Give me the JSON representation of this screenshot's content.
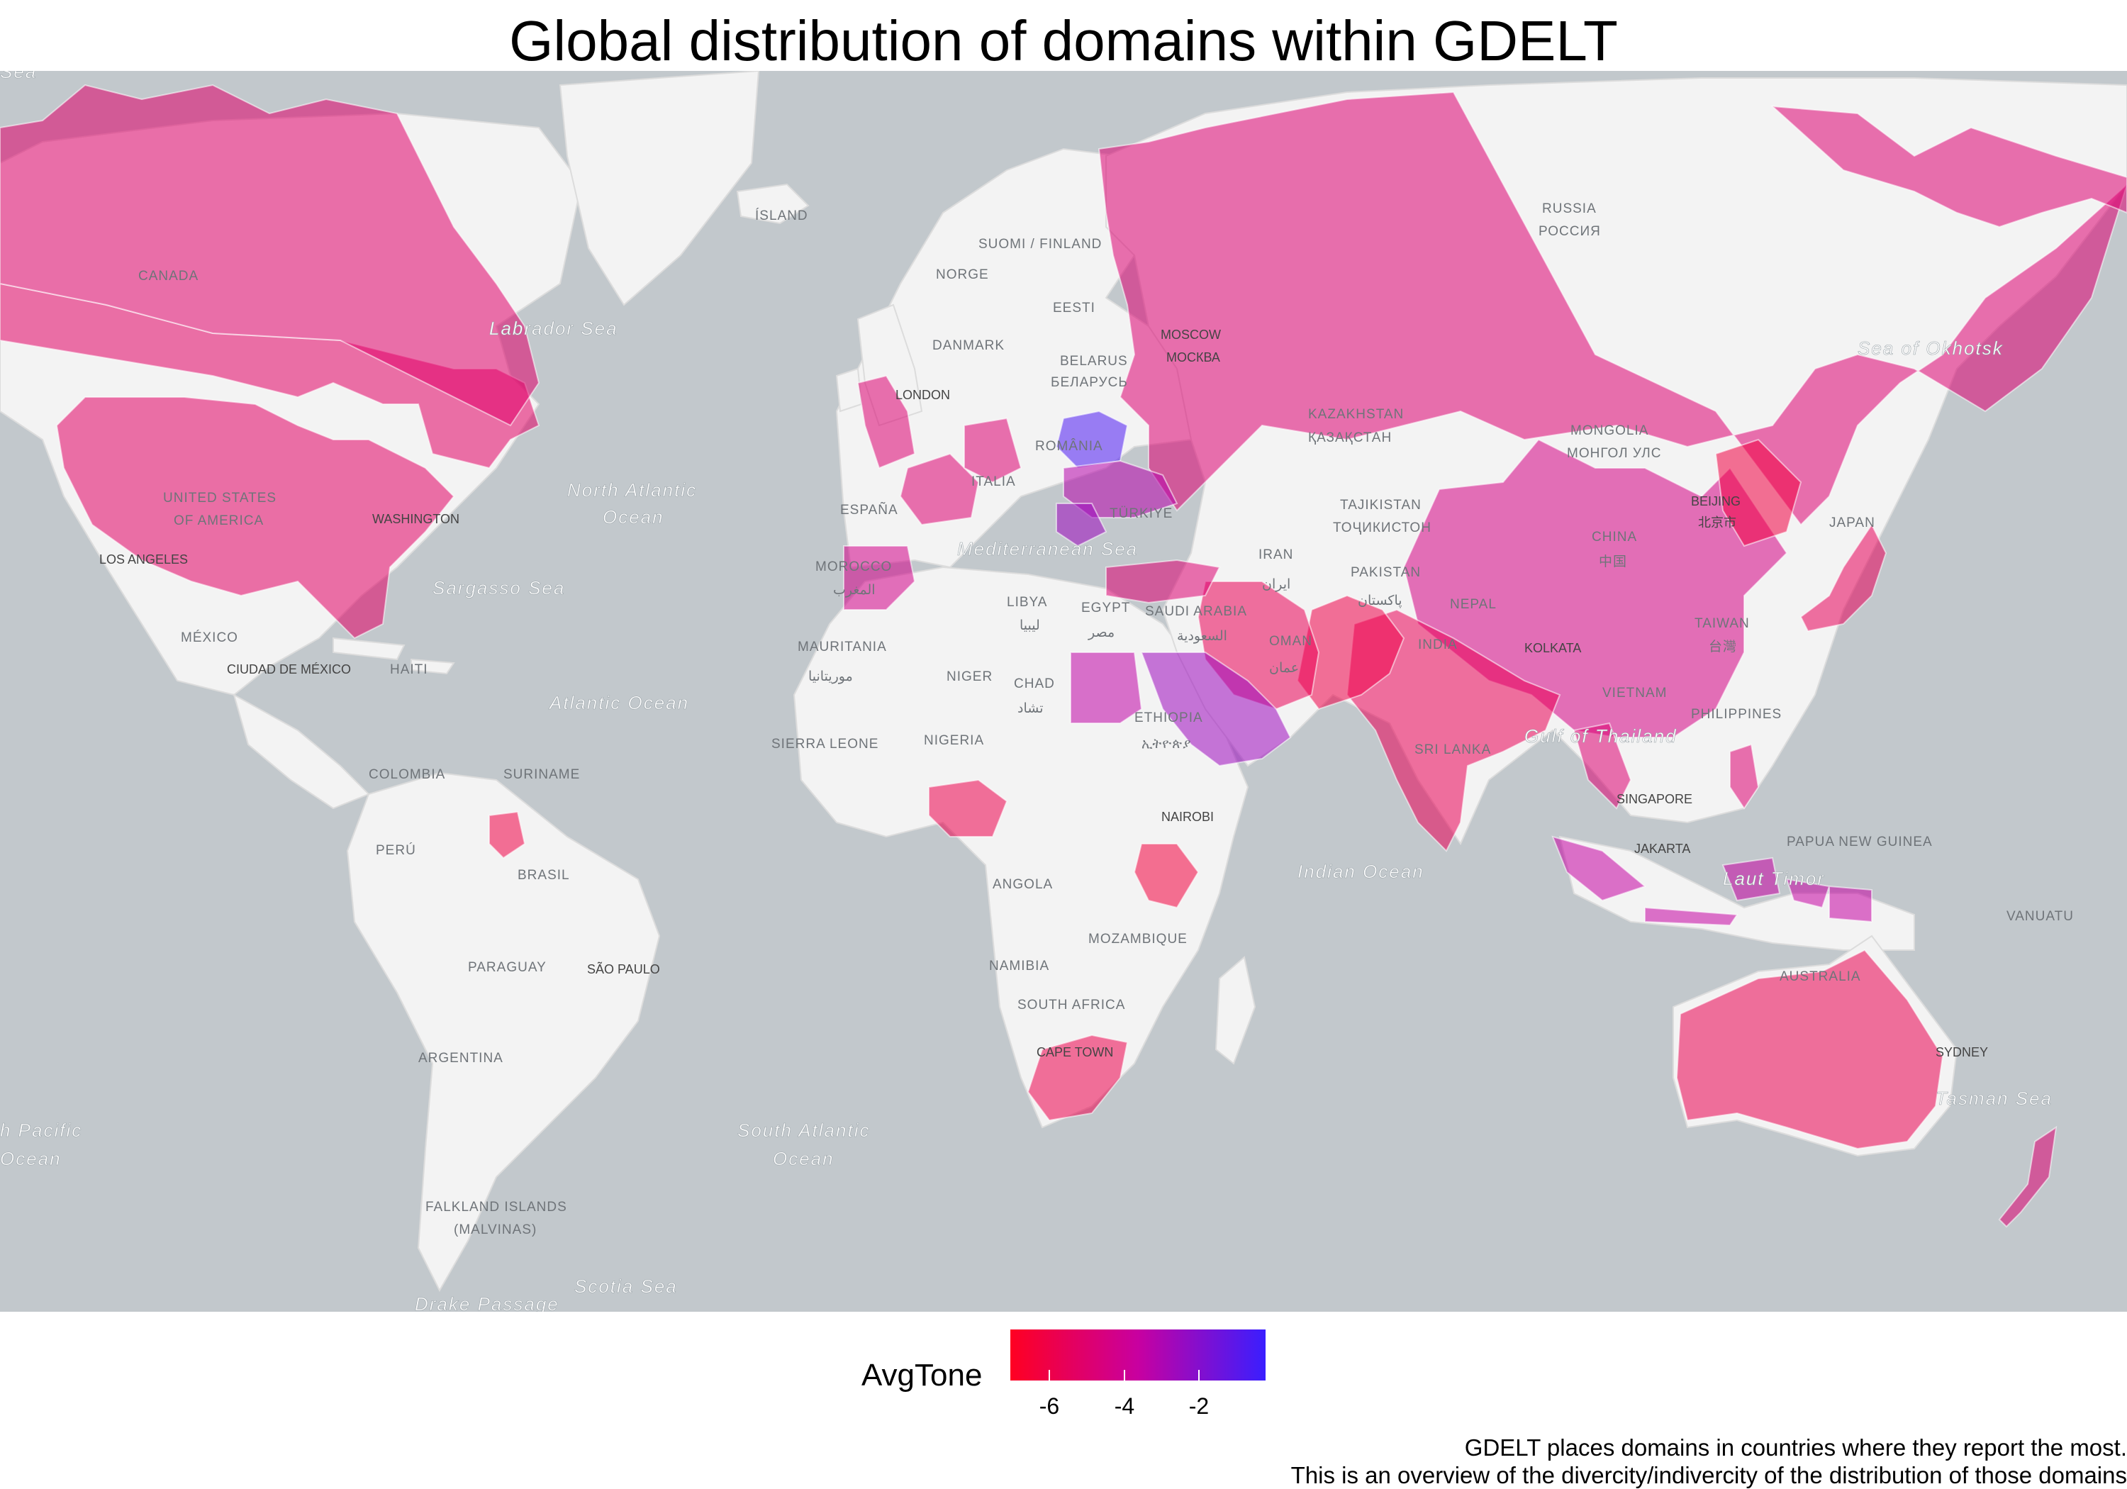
{
  "title": "Global distribution of domains within GDELT",
  "legend": {
    "title": "AvgTone",
    "ticks": [
      "-6",
      "-4",
      "-2"
    ],
    "tick_values": [
      -6,
      -4,
      -2
    ],
    "range": [
      -7.2,
      -0.8
    ],
    "low_color": "#ff0022",
    "mid_color": "#c800a0",
    "high_color": "#3a1eff"
  },
  "caption": {
    "line1": "GDELT places domains in countries where they report the most.",
    "line2": "This is an overview of the divercity/indivercity of the distribution of those domains"
  },
  "colors": {
    "ocean": "#c2c8cc",
    "land": "#f3f3f3"
  },
  "countries": [
    {
      "name": "UNITED STATES OF AMERICA",
      "avg_tone": -5.5
    },
    {
      "name": "CANADA",
      "avg_tone": -5.4
    },
    {
      "name": "RUSSIA",
      "avg_tone": -5.2
    },
    {
      "name": "CHINA",
      "avg_tone": -4.7
    },
    {
      "name": "INDIA",
      "avg_tone": -5.9
    },
    {
      "name": "PAKISTAN",
      "avg_tone": -6.2
    },
    {
      "name": "IRAN",
      "avg_tone": -5.9
    },
    {
      "name": "SAUDI ARABIA",
      "avg_tone": -3.0
    },
    {
      "name": "EGYPT",
      "avg_tone": -3.8
    },
    {
      "name": "BELARUS",
      "avg_tone": -1.2
    },
    {
      "name": "UKRAINE",
      "avg_tone": -3.6
    },
    {
      "name": "ROMÂNIA",
      "avg_tone": -3.0
    },
    {
      "name": "AUSTRALIA",
      "avg_tone": -6.0
    },
    {
      "name": "NIGERIA",
      "avg_tone": -6.1
    },
    {
      "name": "KENYA",
      "avg_tone": -6.5
    },
    {
      "name": "SOUTH AFRICA",
      "avg_tone": -6.1
    },
    {
      "name": "ESPAÑA",
      "avg_tone": -4.6
    },
    {
      "name": "INDONESIA",
      "avg_tone": -3.9
    },
    {
      "name": "JAPAN",
      "avg_tone": -5.8
    },
    {
      "name": "NEW ZEALAND",
      "avg_tone": -5.2
    },
    {
      "name": "SURINAME",
      "avg_tone": -6.3
    },
    {
      "name": "NORTH KOREA",
      "avg_tone": -6.4
    }
  ],
  "map_labels": {
    "oceans": [
      "Labrador Sea",
      "North Atlantic",
      "Ocean",
      "Sargasso Sea",
      "Atlantic Ocean",
      "Mediterranean Sea",
      "Indian Ocean",
      "Gulf of Thailand",
      "Sea of Okhotsk",
      "Laut Timor",
      "Tasman Sea",
      "South Atlantic",
      "Ocean",
      "h Pacific",
      "Ocean",
      "Scotia Sea",
      "Drake Passage",
      "Sea"
    ],
    "places": [
      "CANADA",
      "ÍSLAND",
      "SUOMI / FINLAND",
      "NORGE",
      "EESTI",
      "DANMARK",
      "BELARUS",
      "БЕЛАРУСЬ",
      "ROMÂNIA",
      "ITALIA",
      "ESPAÑA",
      "TÜRKIYE",
      "KAZAKHSTAN",
      "ҚАЗАҚСТАН",
      "MONGOLIA",
      "МОНГОЛ УЛС",
      "RUSSIA",
      "РОССИЯ",
      "UNITED STATES",
      "OF AMERICA",
      "MÉXICO",
      "COLOMBIA",
      "SURINAME",
      "PERÚ",
      "BRASIL",
      "PARAGUAY",
      "ARGENTINA",
      "FALKLAND ISLANDS",
      "(MALVINAS)",
      "MOROCCO",
      "المغرب",
      "LIBYA",
      "ليبيا",
      "MAURITANIA",
      "موريتانيا",
      "NIGER",
      "CHAD",
      "تشاد",
      "EGYPT",
      "مصر",
      "SAUDI ARABIA",
      "السعودية",
      "IRAN",
      "ایران",
      "OMAN",
      "عمان",
      "TAJIKISTAN",
      "ТОҶИКИСТОН",
      "PAKISTAN",
      "پاکستان",
      "NEPAL",
      "INDIA",
      "CHINA",
      "中国",
      "JAPAN",
      "TAIWAN",
      "台灣",
      "VIETNAM",
      "PHILIPPINES",
      "SRI LANKA",
      "SIERRA LEONE",
      "NIGERIA",
      "ETHIOPIA",
      "ኢትዮጵያ",
      "ANGOLA",
      "MOZAMBIQUE",
      "NAMIBIA",
      "SOUTH AFRICA",
      "PAPUA NEW GUINEA",
      "VANUATU",
      "AUSTRALIA",
      "HAITI"
    ],
    "cities": [
      "LONDON",
      "MOSCOW",
      "МОСКВА",
      "WASHINGTON",
      "LOS ANGELES",
      "CIUDAD DE MÉXICO",
      "BEIJING",
      "北京市",
      "KOLKATA",
      "SINGAPORE",
      "JAKARTA",
      "NAIROBI",
      "SÃO PAULO",
      "CAPE TOWN",
      "SYDNEY"
    ]
  }
}
